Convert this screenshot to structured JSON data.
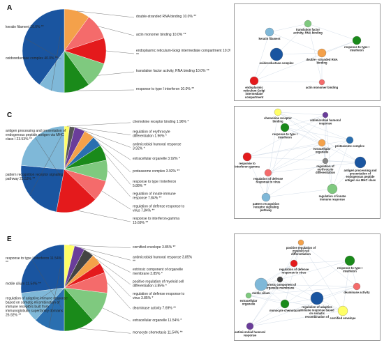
{
  "panels": {
    "A": {
      "letter": "A",
      "chart_data": {
        "type": "pie",
        "labels": [
          {
            "text": "double-stranded RNA binding 10.0% **",
            "value": 10.0,
            "color": "#f4a14a"
          },
          {
            "text": "actin monomer binding 10.0% **",
            "value": 10.0,
            "color": "#f46b6b"
          },
          {
            "text": "endoplasmic reticulum-Golgi intermediate compartment 10.0% **",
            "value": 10.0,
            "color": "#e41a1c"
          },
          {
            "text": "translation factor activity, RNA binding 10.0% **",
            "value": 10.0,
            "color": "#7fc97f"
          },
          {
            "text": "response to type I interferon 10.0% **",
            "value": 10.0,
            "color": "#1a8a1a"
          },
          {
            "text": "keratin filament 10.0% **",
            "value": 10.0,
            "color": "#7fb8d8"
          },
          {
            "text": "oxidoreductase complex 40.0% **",
            "value": 40.0,
            "color": "#1a55a0"
          }
        ]
      }
    },
    "C": {
      "letter": "C",
      "chart_data": {
        "type": "pie",
        "labels": [
          {
            "text": "chemokine receptor binding 1.96% *",
            "value": 1.96,
            "color": "#ffff66"
          },
          {
            "text": "regulation of erythrocyte differentiation 1.96% *",
            "value": 1.96,
            "color": "#555555"
          },
          {
            "text": "antimicrobial humoral response 3.92% *",
            "value": 3.92,
            "color": "#6a3d9a"
          },
          {
            "text": "extracellular organelle 3.92% *",
            "value": 3.92,
            "color": "#f4a14a"
          },
          {
            "text": "proteasome complex 3.92% **",
            "value": 3.92,
            "color": "#2a6fb0"
          },
          {
            "text": "response to type I interferon 5.88% **",
            "value": 5.88,
            "color": "#1a8a1a"
          },
          {
            "text": "regulation of innate immune response 7.84% **",
            "value": 7.84,
            "color": "#7fc97f"
          },
          {
            "text": "regulation of defense response to virus 7.84% **",
            "value": 7.84,
            "color": "#f46b6b"
          },
          {
            "text": "response to interferon-gamma 15.69% **",
            "value": 15.69,
            "color": "#e41a1c"
          },
          {
            "text": "antigen processing and presentation of endogenous peptide antigen via MHC class I 23.53% **",
            "value": 23.53,
            "color": "#1a55a0"
          },
          {
            "text": "pattern recognition receptor signaling pathway 23.53% **",
            "value": 23.53,
            "color": "#7fb8d8"
          }
        ]
      }
    },
    "E": {
      "letter": "E",
      "chart_data": {
        "type": "pie",
        "labels": [
          {
            "text": "cornified envelope 3.85% **",
            "value": 3.85,
            "color": "#ffff66"
          },
          {
            "text": "antimicrobial humoral response 3.85% **",
            "value": 3.85,
            "color": "#6a3d9a"
          },
          {
            "text": "extrinsic component of organelle membrane 3.85% *",
            "value": 3.85,
            "color": "#444444"
          },
          {
            "text": "positive regulation of myeloid cell differentiation 3.85% *",
            "value": 3.85,
            "color": "#f4a14a"
          },
          {
            "text": "regulation of defense response to virus 3.85% *",
            "value": 3.85,
            "color": "#e41a1c"
          },
          {
            "text": "deaminase activity 7.69% **",
            "value": 7.69,
            "color": "#f46b6b"
          },
          {
            "text": "extracellular organelle 11.54% *",
            "value": 11.54,
            "color": "#7fc97f"
          },
          {
            "text": "monocyte chemotaxis 11.54% **",
            "value": 11.54,
            "color": "#1a8a1a"
          },
          {
            "text": "response to type I interferon 11.54% **",
            "value": 11.54,
            "color": "#2a6fb0"
          },
          {
            "text": "motile cilium 11.54% **",
            "value": 11.54,
            "color": "#7fb8d8"
          },
          {
            "text": "regulation of adaptive immune response based on somatic recombination of immune receptors built from immunoglobulin superfamily domains 26.92% **",
            "value": 26.92,
            "color": "#1a55a0"
          }
        ]
      }
    }
  },
  "networks": {
    "B": {
      "letter": "B",
      "nodes": [
        {
          "label": "keratin filament",
          "color": "#7fb8d8"
        },
        {
          "label": "translation factor activity, RNA binding",
          "color": "#7fc97f"
        },
        {
          "label": "oxidoreductase complex",
          "color": "#1a55a0"
        },
        {
          "label": "double - stranded RNA binding",
          "color": "#f4a14a"
        },
        {
          "label": "response to type I interferon",
          "color": "#1a8a1a"
        },
        {
          "label": "endoplasmic reticulum-Golgi intermediate compartment",
          "color": "#e41a1c"
        },
        {
          "label": "actin monomer binding",
          "color": "#f46b6b"
        }
      ]
    },
    "D": {
      "letter": "D",
      "nodes": [
        {
          "label": "chemokine receptor binding",
          "color": "#ffff66"
        },
        {
          "label": "antimicrobial humoral response",
          "color": "#6a3d9a"
        },
        {
          "label": "response to type I interferon",
          "color": "#1a8a1a"
        },
        {
          "label": "extracellular organelle",
          "color": "#f4a14a"
        },
        {
          "label": "response to interferon-gamma",
          "color": "#e41a1c"
        },
        {
          "label": "proteasome complex",
          "color": "#2a6fb0"
        },
        {
          "label": "regulation of erythrocyte differentiation",
          "color": "#888888"
        },
        {
          "label": "antigen processing and presentation of endogenous peptide antigen via MHC class I",
          "color": "#1a55a0"
        },
        {
          "label": "regulation of defense response to virus",
          "color": "#f46b6b"
        },
        {
          "label": "pattern recognition receptor signaling pathway",
          "color": "#7fb8d8"
        },
        {
          "label": "regulation of innate immune response",
          "color": "#7fc97f"
        }
      ]
    },
    "F": {
      "letter": "F",
      "nodes": [
        {
          "label": "positive regulation of myeloid cell differentiation",
          "color": "#f4a14a"
        },
        {
          "label": "regulation of defense response to virus",
          "color": "#e41a1c"
        },
        {
          "label": "response to type I interferon",
          "color": "#1a8a1a"
        },
        {
          "label": "extrinsic component of organelle membrane",
          "color": "#444444"
        },
        {
          "label": "motile cilium",
          "color": "#7fb8d8"
        },
        {
          "label": "deaminase activity",
          "color": "#f46b6b"
        },
        {
          "label": "extracellular organelle",
          "color": "#7fc97f"
        },
        {
          "label": "monocyte chemotaxis",
          "color": "#1a8a1a"
        },
        {
          "label": "regulation of adaptive immune response based on somatic recombination of immune receptors built from immunoglobulin superfamily domains",
          "color": "#1a55a0"
        },
        {
          "label": "cornified envelope",
          "color": "#ffff66"
        },
        {
          "label": "antimicrobial humoral response",
          "color": "#6a3d9a"
        }
      ]
    }
  }
}
